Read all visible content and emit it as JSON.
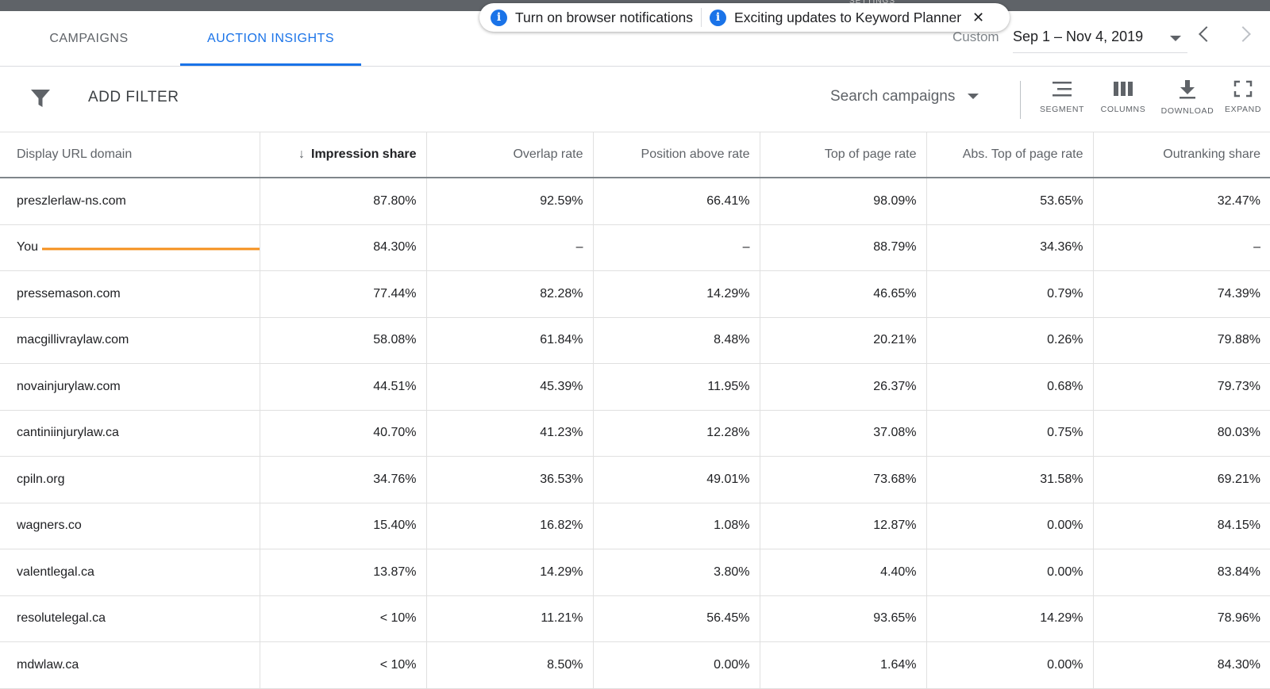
{
  "tabs": [
    {
      "label": "CAMPAIGNS",
      "active": false
    },
    {
      "label": "AUCTION INSIGHTS",
      "active": true
    }
  ],
  "notifications": [
    {
      "icon": "info-icon",
      "text": "Turn on browser notifications"
    },
    {
      "icon": "info-icon",
      "text": "Exciting updates to Keyword Planner"
    }
  ],
  "date_range": {
    "label": "Custom",
    "value": "Sep 1 – Nov 4, 2019"
  },
  "toolbar": {
    "add_filter": "ADD FILTER",
    "campaign_selector": "Search campaigns",
    "segment": "SEGMENT",
    "columns": "COLUMNS",
    "download": "DOWNLOAD",
    "expand": "EXPAND"
  },
  "table": {
    "headers": [
      "Display URL domain",
      "Impression share",
      "Overlap rate",
      "Position above rate",
      "Top of page rate",
      "Abs. Top of page rate",
      "Outranking share"
    ],
    "sorted_column": "Impression share",
    "sort_direction": "descending",
    "rows": [
      [
        "preszlerlaw-ns.com",
        "87.80%",
        "92.59%",
        "66.41%",
        "98.09%",
        "53.65%",
        "32.47%"
      ],
      [
        "You",
        "84.30%",
        "–",
        "–",
        "88.79%",
        "34.36%",
        "–"
      ],
      [
        "pressemason.com",
        "77.44%",
        "82.28%",
        "14.29%",
        "46.65%",
        "0.79%",
        "74.39%"
      ],
      [
        "macgillivraylaw.com",
        "58.08%",
        "61.84%",
        "8.48%",
        "20.21%",
        "0.26%",
        "79.88%"
      ],
      [
        "novainjurylaw.com",
        "44.51%",
        "45.39%",
        "11.95%",
        "26.37%",
        "0.68%",
        "79.73%"
      ],
      [
        "cantiniinjurylaw.ca",
        "40.70%",
        "41.23%",
        "12.28%",
        "37.08%",
        "0.75%",
        "80.03%"
      ],
      [
        "cpiln.org",
        "34.76%",
        "36.53%",
        "49.01%",
        "73.68%",
        "31.58%",
        "69.21%"
      ],
      [
        "wagners.co",
        "15.40%",
        "16.82%",
        "1.08%",
        "12.87%",
        "0.00%",
        "84.15%"
      ],
      [
        "valentlegal.ca",
        "13.87%",
        "14.29%",
        "3.80%",
        "4.40%",
        "0.00%",
        "83.84%"
      ],
      [
        "resolutelegal.ca",
        "< 10%",
        "11.21%",
        "56.45%",
        "93.65%",
        "14.29%",
        "78.96%"
      ],
      [
        "mdwlaw.ca",
        "< 10%",
        "8.50%",
        "0.00%",
        "1.64%",
        "0.00%",
        "84.30%"
      ]
    ]
  },
  "colors": {
    "accent": "#1a73e8",
    "annotation_arrow": "#f5901e",
    "text": "#202124",
    "muted": "#5f6368"
  }
}
